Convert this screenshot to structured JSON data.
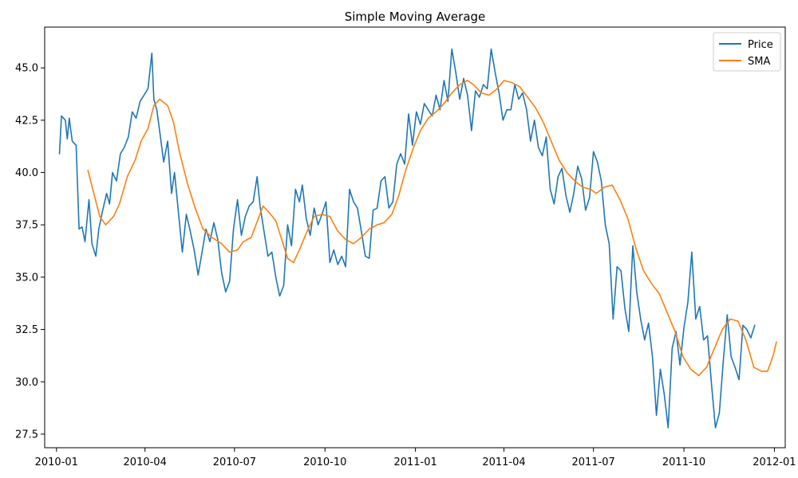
{
  "chart_data": {
    "type": "line",
    "title": "Simple Moving Average",
    "xlabel": "",
    "ylabel": "",
    "x_range": [
      "2009-12-20",
      "2012-01-12"
    ],
    "ylim": [
      26.85,
      46.95
    ],
    "grid": false,
    "legend": {
      "placement": "top-right",
      "entries": [
        "Price",
        "SMA"
      ]
    },
    "x_ticks": [
      "2010-01",
      "2010-04",
      "2010-07",
      "2010-10",
      "2011-01",
      "2011-04",
      "2011-07",
      "2011-10",
      "2012-01"
    ],
    "y_ticks": [
      "27.5",
      "30.0",
      "32.5",
      "35.0",
      "37.5",
      "40.0",
      "42.5",
      "45.0"
    ],
    "series": [
      {
        "name": "Price",
        "color": "#1f77b4",
        "points": [
          [
            "2010-01-04",
            40.9
          ],
          [
            "2010-01-06",
            42.7
          ],
          [
            "2010-01-10",
            42.5
          ],
          [
            "2010-01-12",
            41.6
          ],
          [
            "2010-01-14",
            42.6
          ],
          [
            "2010-01-17",
            41.5
          ],
          [
            "2010-01-21",
            41.3
          ],
          [
            "2010-01-24",
            37.3
          ],
          [
            "2010-01-27",
            37.4
          ],
          [
            "2010-01-30",
            36.7
          ],
          [
            "2010-02-03",
            38.7
          ],
          [
            "2010-02-06",
            36.6
          ],
          [
            "2010-02-10",
            36.0
          ],
          [
            "2010-02-13",
            37.3
          ],
          [
            "2010-02-17",
            38.2
          ],
          [
            "2010-02-21",
            39.0
          ],
          [
            "2010-02-24",
            38.5
          ],
          [
            "2010-02-27",
            40.0
          ],
          [
            "2010-03-03",
            39.6
          ],
          [
            "2010-03-07",
            40.9
          ],
          [
            "2010-03-11",
            41.2
          ],
          [
            "2010-03-15",
            41.7
          ],
          [
            "2010-03-19",
            42.9
          ],
          [
            "2010-03-23",
            42.6
          ],
          [
            "2010-03-27",
            43.4
          ],
          [
            "2010-03-31",
            43.7
          ],
          [
            "2010-04-04",
            44.0
          ],
          [
            "2010-04-08",
            45.7
          ],
          [
            "2010-04-10",
            43.5
          ],
          [
            "2010-04-13",
            43.0
          ],
          [
            "2010-04-17",
            41.6
          ],
          [
            "2010-04-20",
            40.5
          ],
          [
            "2010-04-24",
            41.5
          ],
          [
            "2010-04-28",
            39.0
          ],
          [
            "2010-05-01",
            40.0
          ],
          [
            "2010-05-05",
            38.1
          ],
          [
            "2010-05-09",
            36.2
          ],
          [
            "2010-05-13",
            38.0
          ],
          [
            "2010-05-17",
            37.2
          ],
          [
            "2010-05-21",
            36.3
          ],
          [
            "2010-05-25",
            35.1
          ],
          [
            "2010-05-29",
            36.2
          ],
          [
            "2010-06-02",
            37.3
          ],
          [
            "2010-06-06",
            36.7
          ],
          [
            "2010-06-10",
            37.6
          ],
          [
            "2010-06-14",
            36.8
          ],
          [
            "2010-06-18",
            35.2
          ],
          [
            "2010-06-22",
            34.3
          ],
          [
            "2010-06-26",
            34.8
          ],
          [
            "2010-06-30",
            37.3
          ],
          [
            "2010-07-04",
            38.7
          ],
          [
            "2010-07-08",
            37.0
          ],
          [
            "2010-07-12",
            37.9
          ],
          [
            "2010-07-16",
            38.4
          ],
          [
            "2010-07-20",
            38.6
          ],
          [
            "2010-07-24",
            39.8
          ],
          [
            "2010-07-27",
            38.4
          ],
          [
            "2010-07-31",
            37.2
          ],
          [
            "2010-08-04",
            36.0
          ],
          [
            "2010-08-08",
            36.2
          ],
          [
            "2010-08-12",
            35.0
          ],
          [
            "2010-08-16",
            34.1
          ],
          [
            "2010-08-20",
            34.6
          ],
          [
            "2010-08-24",
            37.5
          ],
          [
            "2010-08-28",
            36.5
          ],
          [
            "2010-09-01",
            39.2
          ],
          [
            "2010-09-05",
            38.6
          ],
          [
            "2010-09-08",
            39.4
          ],
          [
            "2010-09-12",
            37.8
          ],
          [
            "2010-09-16",
            37.0
          ],
          [
            "2010-09-20",
            38.3
          ],
          [
            "2010-09-24",
            37.5
          ],
          [
            "2010-09-28",
            38.0
          ],
          [
            "2010-10-02",
            38.6
          ],
          [
            "2010-10-06",
            35.7
          ],
          [
            "2010-10-10",
            36.3
          ],
          [
            "2010-10-14",
            35.6
          ],
          [
            "2010-10-18",
            36.0
          ],
          [
            "2010-10-22",
            35.5
          ],
          [
            "2010-10-26",
            39.2
          ],
          [
            "2010-10-30",
            38.6
          ],
          [
            "2010-11-03",
            38.3
          ],
          [
            "2010-11-07",
            37.2
          ],
          [
            "2010-11-11",
            36.0
          ],
          [
            "2010-11-15",
            35.9
          ],
          [
            "2010-11-19",
            38.2
          ],
          [
            "2010-11-23",
            38.3
          ],
          [
            "2010-11-27",
            39.6
          ],
          [
            "2010-12-01",
            39.8
          ],
          [
            "2010-12-05",
            38.3
          ],
          [
            "2010-12-09",
            38.6
          ],
          [
            "2010-12-13",
            40.4
          ],
          [
            "2010-12-17",
            40.9
          ],
          [
            "2010-12-21",
            40.4
          ],
          [
            "2010-12-25",
            42.8
          ],
          [
            "2010-12-29",
            41.3
          ],
          [
            "2011-01-02",
            42.9
          ],
          [
            "2011-01-06",
            42.3
          ],
          [
            "2011-01-10",
            43.3
          ],
          [
            "2011-01-14",
            43.0
          ],
          [
            "2011-01-18",
            42.7
          ],
          [
            "2011-01-22",
            43.7
          ],
          [
            "2011-01-26",
            43.0
          ],
          [
            "2011-01-30",
            44.4
          ],
          [
            "2011-02-03",
            43.4
          ],
          [
            "2011-02-07",
            45.9
          ],
          [
            "2011-02-11",
            44.8
          ],
          [
            "2011-02-15",
            43.5
          ],
          [
            "2011-02-19",
            44.5
          ],
          [
            "2011-02-23",
            43.7
          ],
          [
            "2011-02-27",
            42.0
          ],
          [
            "2011-03-03",
            43.9
          ],
          [
            "2011-03-07",
            43.6
          ],
          [
            "2011-03-11",
            44.2
          ],
          [
            "2011-03-15",
            44.0
          ],
          [
            "2011-03-19",
            45.9
          ],
          [
            "2011-03-23",
            44.8
          ],
          [
            "2011-03-27",
            43.8
          ],
          [
            "2011-03-31",
            42.5
          ],
          [
            "2011-04-04",
            43.0
          ],
          [
            "2011-04-08",
            43.0
          ],
          [
            "2011-04-12",
            44.2
          ],
          [
            "2011-04-16",
            43.5
          ],
          [
            "2011-04-20",
            43.8
          ],
          [
            "2011-04-24",
            43.0
          ],
          [
            "2011-04-28",
            41.5
          ],
          [
            "2011-05-02",
            42.5
          ],
          [
            "2011-05-06",
            41.2
          ],
          [
            "2011-05-10",
            40.8
          ],
          [
            "2011-05-14",
            41.7
          ],
          [
            "2011-05-18",
            39.2
          ],
          [
            "2011-05-22",
            38.5
          ],
          [
            "2011-05-26",
            39.8
          ],
          [
            "2011-05-30",
            40.2
          ],
          [
            "2011-06-03",
            38.9
          ],
          [
            "2011-06-07",
            38.1
          ],
          [
            "2011-06-11",
            39.0
          ],
          [
            "2011-06-15",
            40.3
          ],
          [
            "2011-06-19",
            39.7
          ],
          [
            "2011-06-23",
            38.2
          ],
          [
            "2011-06-27",
            38.8
          ],
          [
            "2011-07-01",
            41.0
          ],
          [
            "2011-07-05",
            40.5
          ],
          [
            "2011-07-09",
            39.6
          ],
          [
            "2011-07-13",
            37.5
          ],
          [
            "2011-07-17",
            36.6
          ],
          [
            "2011-07-21",
            33.0
          ],
          [
            "2011-07-25",
            35.5
          ],
          [
            "2011-07-29",
            35.3
          ],
          [
            "2011-08-02",
            33.5
          ],
          [
            "2011-08-06",
            32.4
          ],
          [
            "2011-08-10",
            36.5
          ],
          [
            "2011-08-14",
            34.3
          ],
          [
            "2011-08-18",
            33.0
          ],
          [
            "2011-08-22",
            32.0
          ],
          [
            "2011-08-26",
            32.8
          ],
          [
            "2011-08-30",
            31.2
          ],
          [
            "2011-09-03",
            28.4
          ],
          [
            "2011-09-07",
            30.6
          ],
          [
            "2011-09-11",
            29.4
          ],
          [
            "2011-09-15",
            27.8
          ],
          [
            "2011-09-19",
            31.6
          ],
          [
            "2011-09-23",
            32.4
          ],
          [
            "2011-09-27",
            30.8
          ],
          [
            "2011-10-01",
            32.6
          ],
          [
            "2011-10-05",
            33.8
          ],
          [
            "2011-10-09",
            36.2
          ],
          [
            "2011-10-13",
            33.0
          ],
          [
            "2011-10-17",
            33.6
          ],
          [
            "2011-10-21",
            32.0
          ],
          [
            "2011-10-25",
            32.2
          ],
          [
            "2011-10-29",
            29.9
          ],
          [
            "2011-11-02",
            27.8
          ],
          [
            "2011-11-06",
            28.5
          ],
          [
            "2011-11-10",
            31.0
          ],
          [
            "2011-11-14",
            33.2
          ],
          [
            "2011-11-18",
            31.2
          ],
          [
            "2011-11-22",
            30.7
          ],
          [
            "2011-11-26",
            30.1
          ],
          [
            "2011-11-30",
            32.7
          ],
          [
            "2011-12-04",
            32.5
          ],
          [
            "2011-12-08",
            32.1
          ],
          [
            "2011-12-12",
            32.7
          ]
        ]
      },
      {
        "name": "SMA",
        "color": "#ff7f0e",
        "points": [
          [
            "2010-02-02",
            40.1
          ],
          [
            "2010-02-08",
            39.0
          ],
          [
            "2010-02-14",
            37.9
          ],
          [
            "2010-02-20",
            37.5
          ],
          [
            "2010-02-28",
            37.9
          ],
          [
            "2010-03-06",
            38.5
          ],
          [
            "2010-03-14",
            39.8
          ],
          [
            "2010-03-22",
            40.6
          ],
          [
            "2010-03-28",
            41.5
          ],
          [
            "2010-04-04",
            42.1
          ],
          [
            "2010-04-10",
            43.2
          ],
          [
            "2010-04-16",
            43.5
          ],
          [
            "2010-04-24",
            43.2
          ],
          [
            "2010-04-30",
            42.4
          ],
          [
            "2010-05-06",
            41.0
          ],
          [
            "2010-05-14",
            39.5
          ],
          [
            "2010-05-22",
            38.3
          ],
          [
            "2010-05-30",
            37.3
          ],
          [
            "2010-06-08",
            36.9
          ],
          [
            "2010-06-18",
            36.6
          ],
          [
            "2010-06-26",
            36.2
          ],
          [
            "2010-07-04",
            36.3
          ],
          [
            "2010-07-10",
            36.7
          ],
          [
            "2010-07-18",
            36.9
          ],
          [
            "2010-07-26",
            37.9
          ],
          [
            "2010-07-30",
            38.4
          ],
          [
            "2010-08-05",
            38.1
          ],
          [
            "2010-08-12",
            37.7
          ],
          [
            "2010-08-18",
            36.8
          ],
          [
            "2010-08-24",
            35.9
          ],
          [
            "2010-08-30",
            35.7
          ],
          [
            "2010-09-05",
            36.3
          ],
          [
            "2010-09-12",
            37.1
          ],
          [
            "2010-09-20",
            37.9
          ],
          [
            "2010-09-28",
            38.0
          ],
          [
            "2010-10-06",
            37.9
          ],
          [
            "2010-10-14",
            37.2
          ],
          [
            "2010-10-22",
            36.8
          ],
          [
            "2010-10-30",
            36.6
          ],
          [
            "2010-11-07",
            36.9
          ],
          [
            "2010-11-15",
            37.3
          ],
          [
            "2010-11-23",
            37.5
          ],
          [
            "2010-11-30",
            37.6
          ],
          [
            "2010-12-08",
            38.0
          ],
          [
            "2010-12-15",
            38.9
          ],
          [
            "2010-12-22",
            40.1
          ],
          [
            "2010-12-30",
            41.2
          ],
          [
            "2011-01-06",
            42.0
          ],
          [
            "2011-01-14",
            42.6
          ],
          [
            "2011-01-22",
            42.9
          ],
          [
            "2011-01-30",
            43.3
          ],
          [
            "2011-02-07",
            43.8
          ],
          [
            "2011-02-15",
            44.2
          ],
          [
            "2011-02-23",
            44.4
          ],
          [
            "2011-03-01",
            44.2
          ],
          [
            "2011-03-09",
            43.8
          ],
          [
            "2011-03-17",
            43.7
          ],
          [
            "2011-03-25",
            44.0
          ],
          [
            "2011-04-01",
            44.4
          ],
          [
            "2011-04-09",
            44.3
          ],
          [
            "2011-04-17",
            44.1
          ],
          [
            "2011-04-25",
            43.6
          ],
          [
            "2011-05-03",
            43.1
          ],
          [
            "2011-05-11",
            42.4
          ],
          [
            "2011-05-19",
            41.5
          ],
          [
            "2011-05-27",
            40.6
          ],
          [
            "2011-06-04",
            40.0
          ],
          [
            "2011-06-12",
            39.6
          ],
          [
            "2011-06-20",
            39.3
          ],
          [
            "2011-06-28",
            39.2
          ],
          [
            "2011-07-04",
            39.0
          ],
          [
            "2011-07-12",
            39.3
          ],
          [
            "2011-07-20",
            39.4
          ],
          [
            "2011-07-28",
            38.7
          ],
          [
            "2011-08-05",
            37.8
          ],
          [
            "2011-08-13",
            36.4
          ],
          [
            "2011-08-21",
            35.3
          ],
          [
            "2011-08-29",
            34.7
          ],
          [
            "2011-09-06",
            34.2
          ],
          [
            "2011-09-14",
            33.3
          ],
          [
            "2011-09-22",
            32.4
          ],
          [
            "2011-09-30",
            31.2
          ],
          [
            "2011-10-08",
            30.6
          ],
          [
            "2011-10-16",
            30.3
          ],
          [
            "2011-10-24",
            30.7
          ],
          [
            "2011-11-01",
            31.6
          ],
          [
            "2011-11-09",
            32.5
          ],
          [
            "2011-11-17",
            33.0
          ],
          [
            "2011-11-25",
            32.9
          ],
          [
            "2011-12-03",
            32.0
          ],
          [
            "2011-12-11",
            30.7
          ],
          [
            "2011-12-19",
            30.5
          ],
          [
            "2011-12-25",
            30.5
          ],
          [
            "2011-12-31",
            31.3
          ],
          [
            "2012-01-03",
            31.9
          ]
        ]
      }
    ]
  }
}
